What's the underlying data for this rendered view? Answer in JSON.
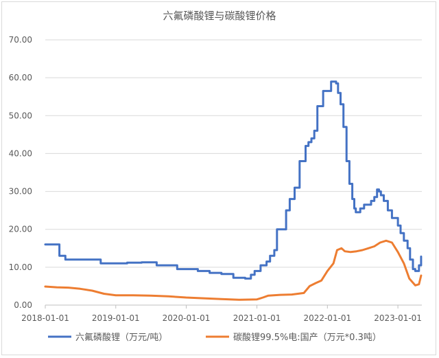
{
  "chart_data": {
    "type": "line",
    "title": "六氟磷酸锂与碳酸锂价格",
    "xlabel": "",
    "ylabel": "",
    "ylim": [
      0,
      70
    ],
    "yticks": [
      "0.00",
      "10.00",
      "20.00",
      "30.00",
      "40.00",
      "50.00",
      "60.00",
      "70.00"
    ],
    "xlim": [
      "2018-01-01",
      "2023-05-05"
    ],
    "xticks": [
      "2018-01-01",
      "2019-01-01",
      "2020-01-01",
      "2021-01-01",
      "2022-01-01",
      "2023-01-01"
    ],
    "grid": "horizontal",
    "legend": "bottom",
    "series": [
      {
        "name": "六氟磷酸锂（万元/吨）",
        "color": "#4472c4",
        "step": true,
        "points": [
          [
            "2018-01-01",
            16.0
          ],
          [
            "2018-03-10",
            16.0
          ],
          [
            "2018-03-15",
            13.0
          ],
          [
            "2018-04-15",
            12.0
          ],
          [
            "2018-10-01",
            12.0
          ],
          [
            "2018-10-15",
            11.0
          ],
          [
            "2019-02-01",
            11.0
          ],
          [
            "2019-03-01",
            11.2
          ],
          [
            "2019-05-15",
            11.3
          ],
          [
            "2019-08-01",
            10.5
          ],
          [
            "2019-11-15",
            9.5
          ],
          [
            "2020-03-01",
            9.0
          ],
          [
            "2020-05-01",
            8.5
          ],
          [
            "2020-07-01",
            8.2
          ],
          [
            "2020-09-01",
            7.2
          ],
          [
            "2020-11-01",
            7.0
          ],
          [
            "2020-12-01",
            8.0
          ],
          [
            "2020-12-20",
            9.0
          ],
          [
            "2021-01-20",
            10.5
          ],
          [
            "2021-02-20",
            11.5
          ],
          [
            "2021-03-10",
            13.0
          ],
          [
            "2021-04-01",
            14.5
          ],
          [
            "2021-04-15",
            20.0
          ],
          [
            "2021-06-01",
            25.0
          ],
          [
            "2021-06-20",
            28.0
          ],
          [
            "2021-07-15",
            31.0
          ],
          [
            "2021-08-10",
            38.0
          ],
          [
            "2021-09-10",
            42.0
          ],
          [
            "2021-09-25",
            43.0
          ],
          [
            "2021-10-10",
            44.0
          ],
          [
            "2021-10-25",
            46.0
          ],
          [
            "2021-11-10",
            52.5
          ],
          [
            "2021-12-10",
            56.5
          ],
          [
            "2022-01-20",
            59.0
          ],
          [
            "2022-02-15",
            58.5
          ],
          [
            "2022-02-25",
            56.0
          ],
          [
            "2022-03-10",
            53.0
          ],
          [
            "2022-03-25",
            47.0
          ],
          [
            "2022-04-10",
            38.0
          ],
          [
            "2022-04-25",
            32.0
          ],
          [
            "2022-05-10",
            28.0
          ],
          [
            "2022-05-20",
            25.5
          ],
          [
            "2022-05-28",
            24.5
          ],
          [
            "2022-06-20",
            25.5
          ],
          [
            "2022-07-10",
            26.5
          ],
          [
            "2022-08-15",
            27.5
          ],
          [
            "2022-09-01",
            28.5
          ],
          [
            "2022-09-15",
            30.5
          ],
          [
            "2022-09-25",
            30.0
          ],
          [
            "2022-10-05",
            29.0
          ],
          [
            "2022-10-20",
            27.5
          ],
          [
            "2022-11-10",
            25.0
          ],
          [
            "2022-12-01",
            23.0
          ],
          [
            "2023-01-01",
            21.0
          ],
          [
            "2023-01-15",
            19.0
          ],
          [
            "2023-02-01",
            17.0
          ],
          [
            "2023-02-20",
            15.0
          ],
          [
            "2023-03-05",
            12.0
          ],
          [
            "2023-03-20",
            9.5
          ],
          [
            "2023-04-01",
            9.0
          ],
          [
            "2023-04-20",
            10.5
          ],
          [
            "2023-05-01",
            12.8
          ]
        ]
      },
      {
        "name": "碳酸锂99.5%电:国产（万元*0.3吨）",
        "color": "#ed7d31",
        "step": false,
        "points": [
          [
            "2018-01-01",
            4.9
          ],
          [
            "2018-03-01",
            4.7
          ],
          [
            "2018-05-01",
            4.6
          ],
          [
            "2018-07-01",
            4.3
          ],
          [
            "2018-09-01",
            3.8
          ],
          [
            "2018-11-01",
            3.0
          ],
          [
            "2019-01-01",
            2.6
          ],
          [
            "2019-04-01",
            2.6
          ],
          [
            "2019-07-01",
            2.5
          ],
          [
            "2019-10-01",
            2.3
          ],
          [
            "2020-01-01",
            2.0
          ],
          [
            "2020-04-01",
            1.8
          ],
          [
            "2020-07-01",
            1.6
          ],
          [
            "2020-10-01",
            1.4
          ],
          [
            "2021-01-01",
            1.5
          ],
          [
            "2021-02-01",
            2.0
          ],
          [
            "2021-03-01",
            2.5
          ],
          [
            "2021-05-01",
            2.7
          ],
          [
            "2021-07-01",
            2.8
          ],
          [
            "2021-09-01",
            3.2
          ],
          [
            "2021-10-01",
            5.0
          ],
          [
            "2021-11-01",
            5.8
          ],
          [
            "2021-12-01",
            6.5
          ],
          [
            "2022-01-01",
            9.0
          ],
          [
            "2022-02-01",
            11.0
          ],
          [
            "2022-02-20",
            14.5
          ],
          [
            "2022-03-15",
            15.0
          ],
          [
            "2022-04-01",
            14.2
          ],
          [
            "2022-05-01",
            14.0
          ],
          [
            "2022-06-01",
            14.2
          ],
          [
            "2022-07-01",
            14.5
          ],
          [
            "2022-08-01",
            15.0
          ],
          [
            "2022-09-01",
            15.5
          ],
          [
            "2022-10-01",
            16.5
          ],
          [
            "2022-11-01",
            17.0
          ],
          [
            "2022-12-01",
            16.5
          ],
          [
            "2023-01-01",
            14.0
          ],
          [
            "2023-02-01",
            11.0
          ],
          [
            "2023-03-01",
            7.0
          ],
          [
            "2023-04-01",
            5.2
          ],
          [
            "2023-04-20",
            5.5
          ],
          [
            "2023-05-01",
            7.8
          ]
        ]
      }
    ]
  }
}
